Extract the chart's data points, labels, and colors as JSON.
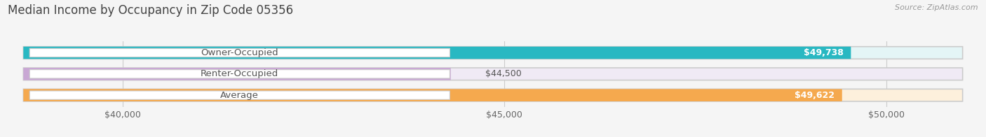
{
  "title": "Median Income by Occupancy in Zip Code 05356",
  "source": "Source: ZipAtlas.com",
  "categories": [
    "Owner-Occupied",
    "Renter-Occupied",
    "Average"
  ],
  "values": [
    49738,
    44500,
    49622
  ],
  "bar_colors": [
    "#29b8c2",
    "#c9a8d4",
    "#f5a94e"
  ],
  "bar_bg_colors": [
    "#e4f5f6",
    "#f0eaf5",
    "#fdf0dc"
  ],
  "value_labels": [
    "$49,738",
    "$44,500",
    "$49,622"
  ],
  "xmin": 38500,
  "xmax": 51200,
  "xticks": [
    40000,
    45000,
    50000
  ],
  "xtick_labels": [
    "$40,000",
    "$45,000",
    "$50,000"
  ],
  "background_color": "#f5f5f5",
  "title_fontsize": 12,
  "label_fontsize": 9.5,
  "value_fontsize": 9
}
